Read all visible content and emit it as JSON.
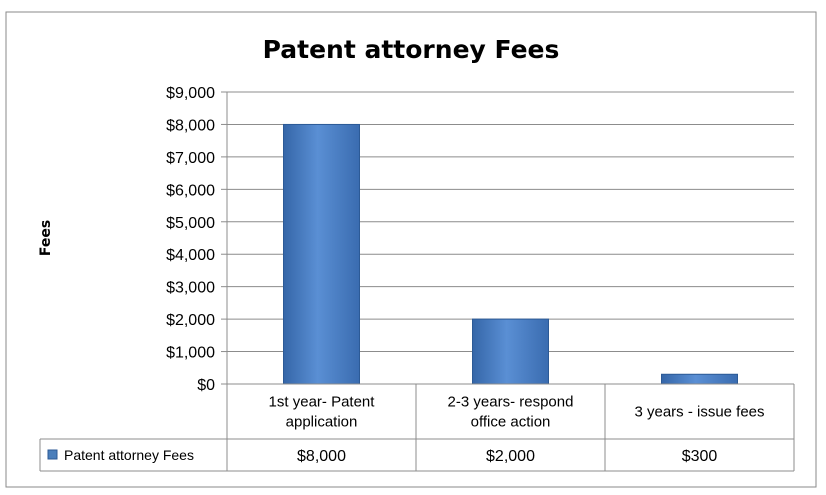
{
  "chart_data": {
    "type": "bar",
    "title": "Patent attorney Fees",
    "ylabel": "Fees",
    "xlabel": "",
    "categories": [
      "1st year- Patent application",
      "2-3 years- respond office action",
      "3 years - issue fees"
    ],
    "category_lines": [
      [
        "1st year- Patent",
        "application"
      ],
      [
        "2-3 years- respond",
        "office action"
      ],
      [
        "3 years - issue fees"
      ]
    ],
    "series": [
      {
        "name": "Patent attorney Fees",
        "values": [
          8000,
          2000,
          300
        ],
        "color": "#4a7ebb"
      }
    ],
    "ylim": [
      0,
      9000
    ],
    "yticks": [
      0,
      1000,
      2000,
      3000,
      4000,
      5000,
      6000,
      7000,
      8000,
      9000
    ],
    "ytick_labels": [
      "$0",
      "$1,000",
      "$2,000",
      "$3,000",
      "$4,000",
      "$5,000",
      "$6,000",
      "$7,000",
      "$8,000",
      "$9,000"
    ],
    "data_table": {
      "legend_label": "Patent attorney Fees",
      "cells": [
        "$8,000",
        "$2,000",
        "$300"
      ]
    },
    "grid": true,
    "legend": "data-table"
  }
}
